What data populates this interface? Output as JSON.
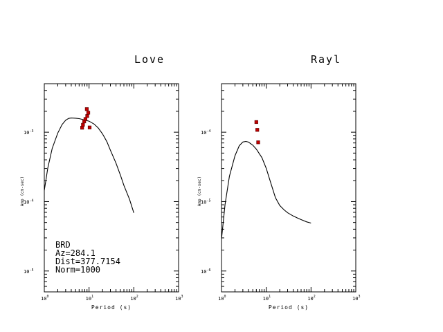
{
  "chart_data": [
    {
      "type": "line",
      "title": "Love",
      "xlabel": "Period (s)",
      "ylabel": "Amp (cm-sec)",
      "x_scale": "log",
      "y_scale": "log",
      "xlim": [
        1,
        1000
      ],
      "ylim": [
        5e-06,
        0.005
      ],
      "x_ticks": [
        {
          "value": 1,
          "base": "10",
          "exp": "0"
        },
        {
          "value": 10,
          "base": "10",
          "exp": "1"
        },
        {
          "value": 100,
          "base": "10",
          "exp": "2"
        },
        {
          "value": 1000,
          "base": "10",
          "exp": "3"
        }
      ],
      "y_ticks": [
        {
          "value": 0.001,
          "base": "10",
          "exp": "-3"
        },
        {
          "value": 0.0001,
          "base": "10",
          "exp": "-4"
        },
        {
          "value": 1e-05,
          "base": "10",
          "exp": "-5"
        }
      ],
      "series": [
        {
          "kind": "line",
          "x": [
            1.0,
            1.2,
            1.5,
            2.0,
            2.5,
            3.0,
            3.5,
            4.0,
            5.0,
            6.0,
            8.0,
            10.0,
            13.0,
            16.0,
            20.0,
            25.0,
            30.0,
            40.0,
            50.0,
            60.0,
            80.0,
            100.0
          ],
          "y": [
            0.000145,
            0.000307,
            0.000584,
            0.000974,
            0.00129,
            0.00149,
            0.00158,
            0.0016,
            0.00159,
            0.00157,
            0.0015,
            0.00144,
            0.00131,
            0.00115,
            0.000948,
            0.00073,
            0.00055,
            0.000358,
            0.000242,
            0.000171,
            0.000108,
            6.89e-05
          ]
        },
        {
          "kind": "scatter",
          "x": [
            7.0,
            7.3,
            7.8,
            8.3,
            8.9,
            9.1,
            9.6,
            10.3
          ],
          "y": [
            0.00116,
            0.00128,
            0.00143,
            0.00155,
            0.00215,
            0.00171,
            0.00191,
            0.00117
          ]
        }
      ],
      "annotations": [
        "BRD",
        "Az=284.1",
        "Dist=377.7154",
        "Norm=1000"
      ]
    },
    {
      "type": "line",
      "title": "Rayl",
      "xlabel": "Period (s)",
      "ylabel": "Amp (cm-sec)",
      "x_scale": "log",
      "y_scale": "log",
      "xlim": [
        1,
        1000
      ],
      "ylim": [
        5e-07,
        0.0005
      ],
      "x_ticks": [
        {
          "value": 1,
          "base": "10",
          "exp": "0"
        },
        {
          "value": 10,
          "base": "10",
          "exp": "1"
        },
        {
          "value": 100,
          "base": "10",
          "exp": "2"
        },
        {
          "value": 1000,
          "base": "10",
          "exp": "3"
        }
      ],
      "y_ticks": [
        {
          "value": 0.0001,
          "base": "10",
          "exp": "-4"
        },
        {
          "value": 1e-05,
          "base": "10",
          "exp": "-5"
        },
        {
          "value": 1e-06,
          "base": "10",
          "exp": "-6"
        }
      ],
      "series": [
        {
          "kind": "line",
          "x": [
            1.0,
            1.2,
            1.5,
            2.0,
            2.5,
            3.0,
            3.5,
            4.0,
            5.0,
            6.0,
            8.0,
            10.0,
            13.0,
            16.0,
            20.0,
            25.0,
            30.0,
            40.0,
            50.0,
            60.0,
            80.0,
            100.0
          ],
          "y": [
            2.88e-06,
            9.04e-06,
            2.31e-05,
            4.59e-05,
            6.4e-05,
            7.22e-05,
            7.36e-05,
            7.2e-05,
            6.5e-05,
            5.7e-05,
            4.3e-05,
            3e-05,
            1.75e-05,
            1.14e-05,
            8.8e-06,
            7.6e-06,
            6.9e-06,
            6.2e-06,
            5.8e-06,
            5.5e-06,
            5.1e-06,
            4.9e-06
          ]
        },
        {
          "kind": "scatter",
          "x": [
            6.0,
            6.3,
            6.6
          ],
          "y": [
            0.00014,
            0.000108,
            7.15e-05
          ]
        }
      ],
      "annotations": []
    }
  ]
}
